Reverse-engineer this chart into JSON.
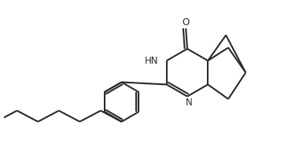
{
  "background": "#ffffff",
  "line_color": "#2a2a2a",
  "bond_lw": 1.5,
  "font_size": 8.5,
  "fig_w": 3.8,
  "fig_h": 1.92,
  "xlim": [
    0,
    10
  ],
  "ylim": [
    0,
    5.2
  ]
}
